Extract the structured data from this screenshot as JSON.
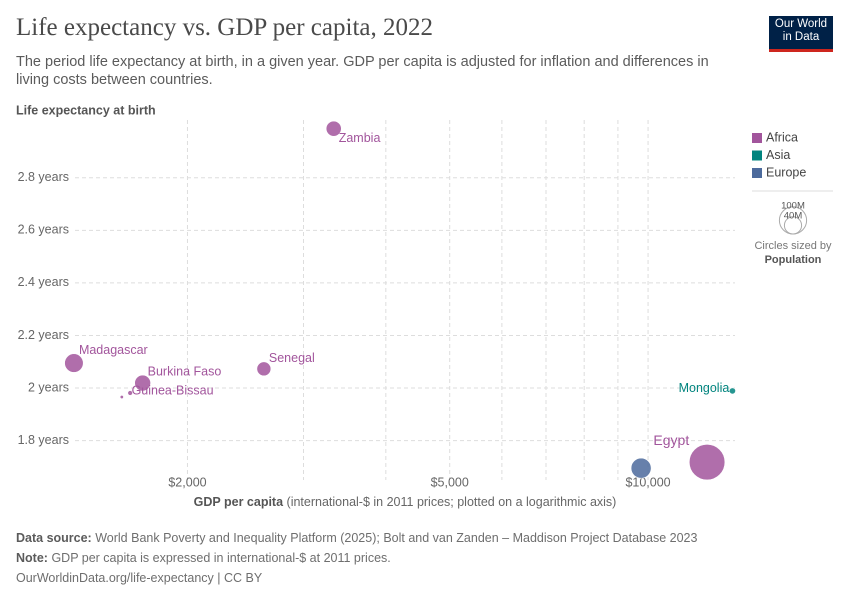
{
  "chart_data": {
    "type": "scatter",
    "title": "Life expectancy vs. GDP per capita, 2022",
    "subtitle": "The period life expectancy at birth, in a given year. GDP per capita is adjusted for inflation and differences in living costs between countries.",
    "y_label": "Life expectancy at birth",
    "x_label": "GDP per capita",
    "x_label_note": "(international-$ in 2011 prices; plotted on a logarithmic axis)",
    "xlog": true,
    "grid": true,
    "legend_position": "right",
    "xlim": [
      1350,
      13550
    ],
    "xticks": [
      {
        "value": 2000,
        "label": "$2,000"
      },
      {
        "value": 5000,
        "label": "$5,000"
      },
      {
        "value": 10000,
        "label": "$10,000"
      }
    ],
    "xminor": [
      3000,
      4000,
      6000,
      7000,
      8000,
      9000
    ],
    "ylim": [
      1.65,
      3.02
    ],
    "yticks": [
      {
        "value": 1.8,
        "label": "1.8 years"
      },
      {
        "value": 2.0,
        "label": "2 years"
      },
      {
        "value": 2.2,
        "label": "2.2 years"
      },
      {
        "value": 2.4,
        "label": "2.4 years"
      },
      {
        "value": 2.6,
        "label": "2.6 years"
      },
      {
        "value": 2.8,
        "label": "2.8 years"
      }
    ],
    "series": [
      {
        "name": "Africa",
        "color": "#a2559c",
        "x": [
          3334,
          1345,
          1710,
          1637,
          2612,
          12290,
          1590
        ],
        "values": [
          2.987,
          2.095,
          2.019,
          1.981,
          2.073,
          1.718,
          1.966
        ],
        "sizes": [
          20,
          30,
          22,
          2,
          17,
          110,
          1
        ],
        "labels": [
          "Zambia",
          "Madagascar",
          "Burkina Faso",
          "Guinea-Bissau",
          "Senegal",
          "Egypt",
          null
        ]
      },
      {
        "name": "Asia",
        "color": "#00847e",
        "x": [
          13430
        ],
        "values": [
          1.989
        ],
        "sizes": [
          3.4
        ],
        "labels": [
          "Mongolia"
        ]
      },
      {
        "name": "Europe",
        "color": "#4c6a9c",
        "x": [
          9760
        ],
        "values": [
          1.695
        ],
        "sizes": [
          35
        ],
        "labels": [
          null
        ]
      }
    ],
    "size_legend": [
      {
        "value": 100,
        "label": "100M"
      },
      {
        "value": 40,
        "label": "40M"
      }
    ],
    "size_legend_title": "Circles sized by",
    "size_legend_variable": "Population"
  },
  "logo": {
    "line1": "Our World",
    "line2": "in Data"
  },
  "footer": {
    "source_label": "Data source:",
    "source": "World Bank Poverty and Inequality Platform (2025); Bolt and van Zanden – Maddison Project Database 2023",
    "note_label": "Note:",
    "note": "GDP per capita is expressed in international-$ at 2011 prices.",
    "url": "OurWorldinData.org/life-expectancy | CC BY"
  }
}
